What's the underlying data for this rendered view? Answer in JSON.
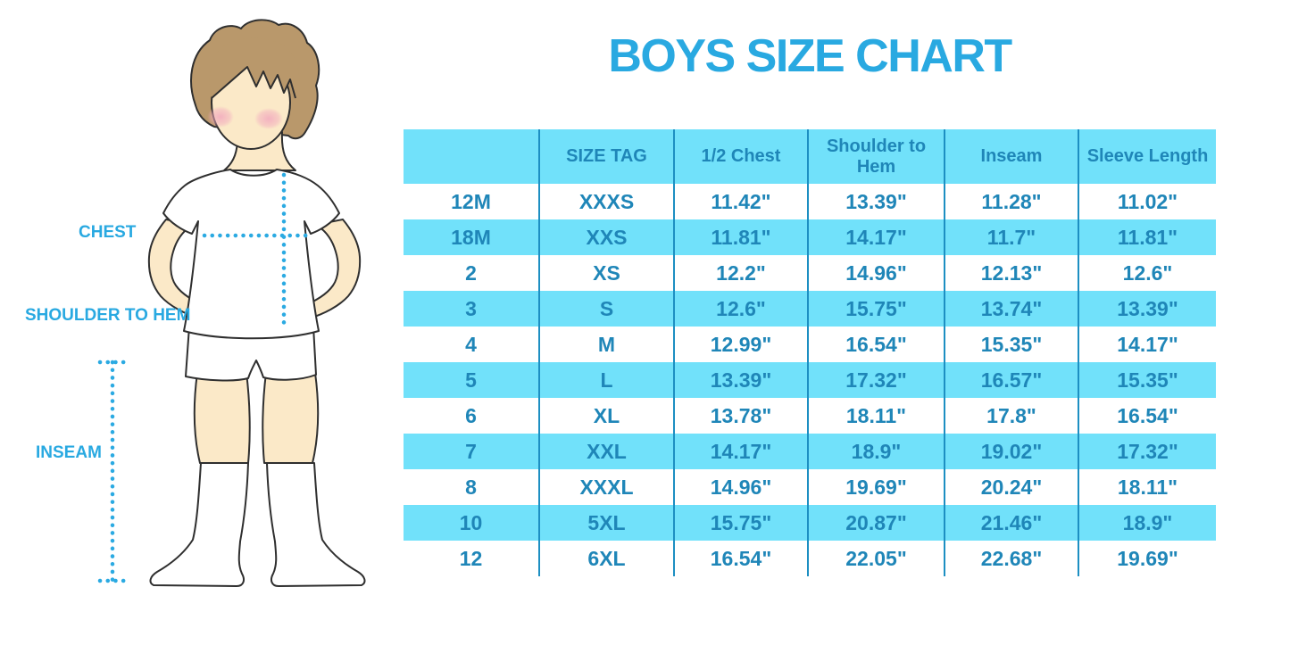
{
  "title": "BOYS SIZE CHART",
  "figure": {
    "description": "outline illustration of a boy in white t-shirt, shorts and knee socks with dotted measurement guides",
    "labels": {
      "chest": "CHEST",
      "shoulder_to_hem": "SHOULDER TO HEM",
      "inseam": "INSEAM"
    }
  },
  "colors": {
    "title_blue": "#29A9E1",
    "label_blue": "#29A9E1",
    "row_stripe_cyan": "#71E1FA",
    "column_divider_blue": "#1D8FC2",
    "table_text_blue": "#1F86B8",
    "dotted_guide_blue": "#2BAAE2",
    "skin": "#FBE9C8",
    "hair": "#B9986B",
    "blush_pink": "#F2A9BE",
    "outline": "#2F2F2F"
  },
  "chart_data": {
    "type": "table",
    "title": "BOYS SIZE CHART",
    "columns": [
      "",
      "SIZE TAG",
      "1/2 Chest",
      "Shoulder to Hem",
      "Inseam",
      "Sleeve Length"
    ],
    "rows": [
      [
        "12M",
        "XXXS",
        "11.42\"",
        "13.39\"",
        "11.28\"",
        "11.02\""
      ],
      [
        "18M",
        "XXS",
        "11.81\"",
        "14.17\"",
        "11.7\"",
        "11.81\""
      ],
      [
        "2",
        "XS",
        "12.2\"",
        "14.96\"",
        "12.13\"",
        "12.6\""
      ],
      [
        "3",
        "S",
        "12.6\"",
        "15.75\"",
        "13.74\"",
        "13.39\""
      ],
      [
        "4",
        "M",
        "12.99\"",
        "16.54\"",
        "15.35\"",
        "14.17\""
      ],
      [
        "5",
        "L",
        "13.39\"",
        "17.32\"",
        "16.57\"",
        "15.35\""
      ],
      [
        "6",
        "XL",
        "13.78\"",
        "18.11\"",
        "17.8\"",
        "16.54\""
      ],
      [
        "7",
        "XXL",
        "14.17\"",
        "18.9\"",
        "19.02\"",
        "17.32\""
      ],
      [
        "8",
        "XXXL",
        "14.96\"",
        "19.69\"",
        "20.24\"",
        "18.11\""
      ],
      [
        "10",
        "5XL",
        "15.75\"",
        "20.87\"",
        "21.46\"",
        "18.9\""
      ],
      [
        "12",
        "6XL",
        "16.54\"",
        "22.05\"",
        "22.68\"",
        "19.69\""
      ]
    ],
    "units": "inches",
    "striped_rows": "header and alternate rows cyan",
    "grid": "vertical dividers only"
  }
}
